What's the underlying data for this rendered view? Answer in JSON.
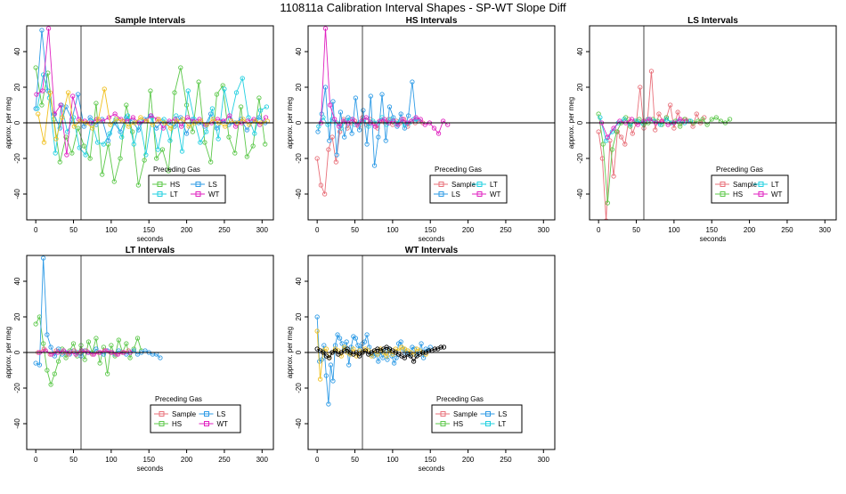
{
  "chart_data": {
    "type": "line",
    "title": "110811a   Calibration Interval Shapes - SP-WT Slope Diff",
    "colors": {
      "Sample": "#e8707a",
      "HS": "#5cc84a",
      "LS": "#2e9be6",
      "LT": "#22d0e0",
      "WT": "#e020c0",
      "other_yellow": "#f0c020",
      "other_black": "#000000"
    },
    "xlabel": "seconds",
    "ylabel": "approx. per meg",
    "xlim": [
      -12,
      315
    ],
    "ylim": [
      -54.5,
      54.5
    ],
    "xticks": [
      0,
      50,
      100,
      150,
      200,
      250,
      300
    ],
    "yticks": [
      -40,
      -20,
      0,
      20,
      40
    ],
    "vline": 60,
    "hline": 0,
    "legend_title": "Preceding Gas",
    "panels": [
      {
        "title": "Sample Intervals",
        "legend": [
          "HS",
          "LS",
          "LT",
          "WT"
        ],
        "series": [
          {
            "name": "HS",
            "x0": 0,
            "dx": 8,
            "y": [
              31,
              10,
              28,
              2,
              -22,
              -8,
              -17,
              -3,
              -13,
              -20,
              11,
              -29,
              -12,
              -33,
              -20,
              10,
              -5,
              -35,
              -21,
              18,
              -20,
              -15,
              -27,
              17,
              31,
              10,
              -5,
              23,
              -11,
              -22,
              16,
              21,
              -8,
              -17,
              9,
              -19,
              -13,
              14,
              -12
            ]
          },
          {
            "name": "LS",
            "x0": 0,
            "dx": 8,
            "y": [
              8,
              52,
              18,
              5,
              -3,
              9,
              2,
              16,
              -2,
              3,
              -1,
              2,
              -10,
              0,
              -5,
              3,
              1,
              -4,
              2,
              4,
              -3,
              1,
              0,
              -2,
              3,
              -6,
              2,
              0,
              -2,
              5,
              -3,
              1,
              -1,
              0,
              2,
              -4,
              1,
              3,
              0
            ]
          },
          {
            "name": "LT",
            "x0": 2,
            "dx": 8,
            "y": [
              8,
              27,
              14,
              -17,
              10,
              -5,
              3,
              -14,
              -18,
              1,
              -11,
              -12,
              -6,
              2,
              -8,
              4,
              -12,
              1,
              -18,
              3,
              -15,
              2,
              -10,
              4,
              -16,
              18,
              2,
              -11,
              -5,
              8,
              -9,
              19,
              2,
              17,
              25,
              3,
              -6,
              7,
              9
            ]
          },
          {
            "name": "WT",
            "x0": 1,
            "dx": 8,
            "y": [
              16,
              18,
              53,
              5,
              10,
              -18,
              15,
              2,
              1,
              0,
              2,
              1,
              3,
              5,
              2,
              1,
              3,
              0,
              1,
              4,
              2,
              -3,
              1,
              2,
              -2,
              3,
              1,
              2,
              -1,
              0,
              2,
              1,
              4,
              -2,
              0,
              1,
              2,
              -1,
              3
            ]
          },
          {
            "name": "other_yellow",
            "x0": 3,
            "dx": 8,
            "y": [
              5,
              -11,
              17,
              -9,
              3,
              17,
              -2,
              1,
              0,
              -3,
              2,
              19,
              -1,
              2,
              1,
              -2,
              0,
              3,
              1,
              -1,
              2,
              0,
              -3,
              1,
              2,
              -2,
              0,
              1,
              -1,
              2,
              0,
              -2,
              1,
              0,
              2,
              -1,
              1,
              0,
              1
            ]
          }
        ]
      },
      {
        "title": "HS Intervals",
        "legend": [
          "Sample",
          "LT",
          "LS",
          "WT"
        ],
        "series": [
          {
            "name": "Sample",
            "x0": 0,
            "dx": 5,
            "y": [
              -20,
              -35,
              -40,
              -15,
              -8,
              -22,
              -5,
              2,
              -3,
              0,
              1,
              -2,
              3,
              -1,
              2,
              0,
              -3,
              1,
              0,
              2,
              -1,
              1,
              0,
              2,
              -2,
              1,
              0,
              1,
              0
            ]
          },
          {
            "name": "LS",
            "x0": 1,
            "dx": 5,
            "y": [
              -5,
              5,
              20,
              -10,
              12,
              -18,
              6,
              -8,
              3,
              -6,
              14,
              -4,
              7,
              -12,
              15,
              -24,
              -8,
              16,
              -10,
              9,
              3,
              -2,
              5,
              -3,
              4,
              23,
              2
            ]
          },
          {
            "name": "LT",
            "x0": 2,
            "dx": 6,
            "y": [
              -2,
              3,
              -1,
              2,
              0,
              -3,
              1,
              2,
              -1,
              0,
              2,
              -2,
              1,
              0,
              3,
              -1,
              2,
              0,
              1,
              -1,
              0,
              2,
              1
            ]
          },
          {
            "name": "WT",
            "x0": 5,
            "dx": 6,
            "y": [
              0,
              53,
              10,
              2,
              -2,
              1,
              0,
              2,
              -1,
              1,
              3,
              0,
              -2,
              1,
              2,
              0,
              1,
              -1,
              2,
              0,
              1,
              3,
              2,
              -1,
              0,
              -3,
              -6,
              1,
              -1
            ]
          }
        ]
      },
      {
        "title": "LS Intervals",
        "legend": [
          "Sample",
          "LT",
          "HS",
          "WT"
        ],
        "series": [
          {
            "name": "Sample",
            "x0": 0,
            "dx": 5,
            "y": [
              -5,
              -20,
              -55,
              -10,
              -30,
              -5,
              -8,
              -12,
              2,
              -6,
              0,
              20,
              -3,
              2,
              29,
              -4,
              5,
              1,
              3,
              10,
              -3,
              6,
              0,
              2,
              1,
              -2,
              5,
              0,
              3
            ]
          },
          {
            "name": "HS",
            "x0": 0,
            "dx": 6,
            "y": [
              5,
              -12,
              -45,
              -15,
              -5,
              0,
              3,
              -2,
              1,
              2,
              -1,
              0,
              2,
              1,
              -1,
              3,
              0,
              1,
              -2,
              2,
              1,
              0,
              1,
              2,
              -1,
              2,
              3,
              1,
              0,
              2
            ]
          },
          {
            "name": "LT",
            "x0": 2,
            "dx": 8,
            "y": [
              3,
              -10,
              -5,
              0,
              2,
              -1,
              1,
              0,
              2,
              1,
              -1,
              2,
              0,
              1,
              0,
              1
            ]
          },
          {
            "name": "WT",
            "x0": 4,
            "dx": 8,
            "y": [
              0,
              -8,
              -3,
              1,
              0,
              2,
              -1,
              1,
              2,
              0,
              1,
              -1,
              0,
              2,
              1
            ]
          }
        ]
      },
      {
        "title": "LT Intervals",
        "legend": [
          "Sample",
          "LS",
          "HS",
          "WT"
        ],
        "series": [
          {
            "name": "HS",
            "x0": 0,
            "dx": 5,
            "y": [
              16,
              20,
              5,
              -10,
              -18,
              -12,
              -5,
              2,
              -3,
              1,
              5,
              -2,
              4,
              -4,
              6,
              0,
              8,
              -6,
              3,
              -12,
              4,
              -2,
              7,
              0,
              5,
              -3,
              2,
              8,
              1
            ]
          },
          {
            "name": "LS",
            "x0": 0,
            "dx": 5,
            "y": [
              -6,
              -7,
              53,
              10,
              3,
              -2,
              2,
              -1,
              0,
              -1,
              1,
              0,
              -2,
              1,
              0,
              -1,
              2,
              0,
              -1,
              1,
              0,
              -1,
              1,
              0,
              -1,
              0,
              1,
              -1,
              0,
              1,
              0,
              -1,
              -1,
              -3
            ]
          },
          {
            "name": "Sample",
            "x0": 3,
            "dx": 8,
            "y": [
              0,
              2,
              -1,
              1,
              0,
              -1,
              1,
              0,
              1,
              -1,
              0,
              1,
              0,
              -1,
              0,
              1
            ]
          },
          {
            "name": "WT",
            "x0": 5,
            "dx": 8,
            "y": [
              0,
              1,
              -1,
              0,
              1,
              0,
              -1,
              1,
              0,
              -1,
              0,
              1,
              0,
              -1,
              0,
              0
            ]
          }
        ]
      },
      {
        "title": "WT Intervals",
        "legend": [
          "Sample",
          "LS",
          "HS",
          "LT"
        ],
        "series": [
          {
            "name": "LS",
            "x0": 0,
            "dx": 3,
            "y": [
              20,
              -5,
              -4,
              4,
              -13,
              -29,
              -7,
              -16,
              4,
              10,
              8,
              5,
              2,
              6,
              -7,
              3,
              9,
              8,
              4,
              2,
              5,
              6,
              10,
              3,
              -1,
              -2,
              -1,
              -5,
              0,
              -3,
              1,
              -4,
              2,
              -2,
              -6,
              -3,
              5,
              6,
              2,
              0,
              1,
              -1,
              3,
              2,
              -1,
              0,
              5,
              -3,
              2,
              1,
              3
            ]
          },
          {
            "name": "other_yellow",
            "x0": 0,
            "dx": 4,
            "y": [
              12,
              -15,
              1,
              2,
              -3,
              0,
              2,
              1,
              -2,
              3,
              0,
              -1,
              2,
              -2,
              1,
              0,
              2,
              1,
              -2,
              1,
              -1,
              2,
              0,
              -2,
              1,
              -1,
              2,
              1,
              3,
              2,
              1,
              0,
              -1,
              2,
              1,
              0,
              -1
            ]
          },
          {
            "name": "other_black",
            "x0": 0,
            "dx": 4,
            "y": [
              2,
              1,
              0,
              -2,
              -3,
              0,
              1,
              -1,
              0,
              1,
              2,
              0,
              -1,
              0,
              -2,
              0,
              1,
              -1,
              0,
              1,
              2,
              1,
              2,
              3,
              2,
              1,
              0,
              -1,
              -2,
              -3,
              -1,
              -2,
              -5,
              -2,
              -1,
              0,
              0,
              1,
              1,
              2,
              2,
              3,
              3
            ]
          }
        ]
      }
    ]
  }
}
